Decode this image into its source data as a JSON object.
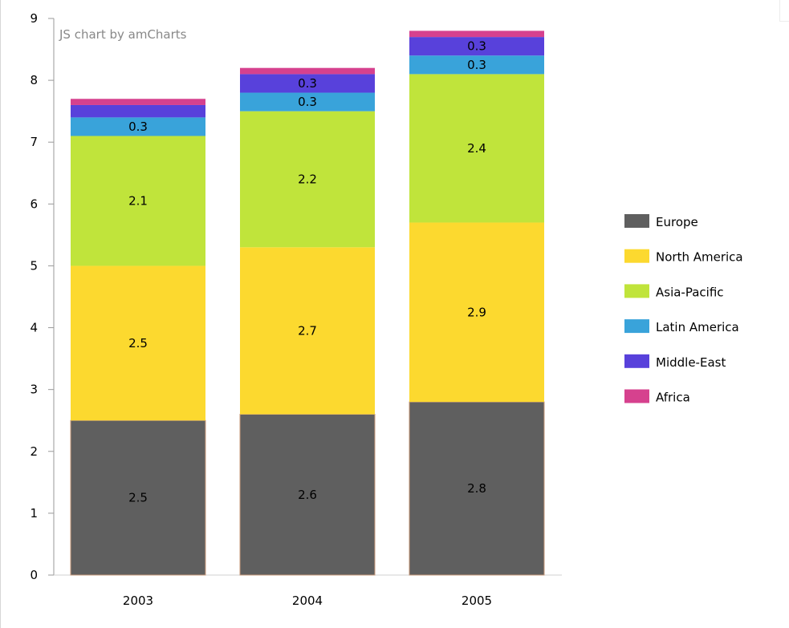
{
  "credit_text": "JS chart by amCharts",
  "chart_data": {
    "type": "bar",
    "stacked": true,
    "categories": [
      "2003",
      "2004",
      "2005"
    ],
    "series": [
      {
        "name": "Europe",
        "color": "#5f5f5f",
        "values": [
          2.5,
          2.6,
          2.8
        ]
      },
      {
        "name": "North America",
        "color": "#fcd92f",
        "values": [
          2.5,
          2.7,
          2.9
        ]
      },
      {
        "name": "Asia-Pacific",
        "color": "#c0e43b",
        "values": [
          2.1,
          2.2,
          2.4
        ]
      },
      {
        "name": "Latin America",
        "color": "#39a3da",
        "values": [
          0.3,
          0.3,
          0.3
        ]
      },
      {
        "name": "Middle-East",
        "color": "#5841db",
        "values": [
          0.2,
          0.3,
          0.3
        ]
      },
      {
        "name": "Africa",
        "color": "#d6418e",
        "values": [
          0.1,
          0.1,
          0.1
        ]
      }
    ],
    "data_labels": [
      [
        "2.5",
        "2.6",
        "2.8"
      ],
      [
        "2.5",
        "2.7",
        "2.9"
      ],
      [
        "2.1",
        "2.2",
        "2.4"
      ],
      [
        "0.3",
        "0.3",
        "0.3"
      ],
      [
        "",
        "0.3",
        "0.3"
      ],
      [
        "",
        "",
        ""
      ]
    ],
    "y_ticks": [
      "0",
      "1",
      "2",
      "3",
      "4",
      "5",
      "6",
      "7",
      "8",
      "9"
    ],
    "ylim": [
      0,
      9
    ],
    "legend_position": "right",
    "grid": false
  }
}
